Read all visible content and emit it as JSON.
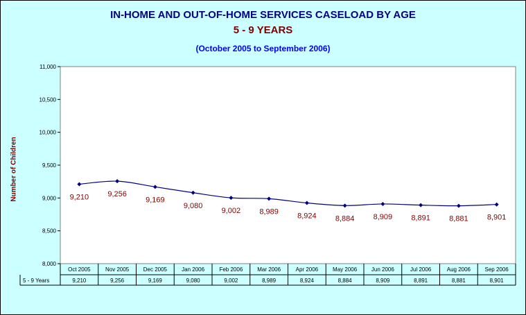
{
  "chart_data": {
    "type": "line",
    "title": "IN-HOME AND OUT-OF-HOME SERVICES CASELOAD BY AGE",
    "subtitle": "5 - 9 YEARS",
    "period": "(October 2005 to September 2006)",
    "ylabel": "Number of Children",
    "xlabel": "",
    "ylim": [
      8000,
      11000
    ],
    "yticks": [
      "8,000",
      "8,500",
      "9,000",
      "9,500",
      "10,000",
      "10,500",
      "11,000"
    ],
    "categories": [
      "Oct 2005",
      "Nov 2005",
      "Dec 2005",
      "Jan 2006",
      "Feb 2006",
      "Mar 2006",
      "Apr 2006",
      "May 2006",
      "Jun 2006",
      "Jul 2006",
      "Aug 2006",
      "Sep 2006"
    ],
    "series": [
      {
        "name": "5 - 9 Years",
        "values": [
          9210,
          9256,
          9169,
          9080,
          9002,
          8989,
          8924,
          8884,
          8909,
          8891,
          8881,
          8901
        ],
        "labels": [
          "9,210",
          "9,256",
          "9,169",
          "9,080",
          "9,002",
          "8,989",
          "8,924",
          "8,884",
          "8,909",
          "8,891",
          "8,881",
          "8,901"
        ]
      }
    ],
    "grid": false,
    "legend": "data-table",
    "colors": {
      "line": "#000080",
      "marker": "#000080",
      "label": "#800000",
      "background": "#ccffff",
      "plot": "#ffffff"
    }
  }
}
